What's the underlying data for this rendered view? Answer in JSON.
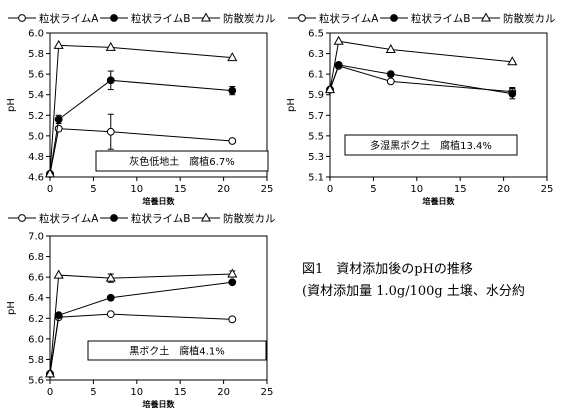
{
  "caption": {
    "line1": "図1　資材添加後のpHの推移",
    "line2": "(資材添加量 1.0g/100g 土壌、水分約"
  },
  "chart_data": [
    {
      "type": "line",
      "soil_label": "灰色低地土　腐植6.7%",
      "xlabel": "培養日数",
      "ylabel": "pH",
      "xlim": [
        0,
        25
      ],
      "ylim": [
        4.6,
        6.0
      ],
      "xticks": [
        "0",
        "5",
        "10",
        "15",
        "20",
        "25"
      ],
      "yticks": [
        "4.6",
        "4.8",
        "5.0",
        "5.2",
        "5.4",
        "5.6",
        "5.8",
        "6.0"
      ],
      "legend_position": "top",
      "series": [
        {
          "name": "粒状ライムA",
          "marker": "circle-open",
          "x": [
            0,
            1,
            7,
            21
          ],
          "y": [
            4.63,
            5.07,
            5.04,
            4.95
          ],
          "err": [
            0,
            0.02,
            0.17,
            0.02
          ]
        },
        {
          "name": "粒状ライムB",
          "marker": "circle-filled",
          "x": [
            0,
            1,
            7,
            21
          ],
          "y": [
            4.63,
            5.16,
            5.54,
            5.44
          ],
          "err": [
            0,
            0.04,
            0.09,
            0.04
          ]
        },
        {
          "name": "防散炭カル",
          "marker": "triangle-open",
          "x": [
            0,
            1,
            7,
            21
          ],
          "y": [
            4.63,
            5.88,
            5.86,
            5.76
          ],
          "err": [
            0,
            0,
            0,
            0
          ]
        }
      ]
    },
    {
      "type": "line",
      "soil_label": "多湿黒ボク土　腐植13.4%",
      "xlabel": "培養日数",
      "ylabel": "pH",
      "xlim": [
        0,
        25
      ],
      "ylim": [
        5.1,
        6.5
      ],
      "xticks": [
        "0",
        "5",
        "10",
        "15",
        "20",
        "25"
      ],
      "yticks": [
        "5.1",
        "5.3",
        "5.5",
        "5.7",
        "5.9",
        "6.1",
        "6.3",
        "6.5"
      ],
      "legend_position": "top",
      "series": [
        {
          "name": "粒状ライムA",
          "marker": "circle-open",
          "x": [
            0,
            1,
            7,
            21
          ],
          "y": [
            5.95,
            6.18,
            6.03,
            5.93
          ],
          "err": [
            0,
            0,
            0,
            0.04
          ]
        },
        {
          "name": "粒状ライムB",
          "marker": "circle-filled",
          "x": [
            0,
            1,
            7,
            21
          ],
          "y": [
            5.95,
            6.19,
            6.1,
            5.91
          ],
          "err": [
            0,
            0,
            0.02,
            0.05
          ]
        },
        {
          "name": "防散炭カル",
          "marker": "triangle-open",
          "x": [
            0,
            1,
            7,
            21
          ],
          "y": [
            5.95,
            6.42,
            6.34,
            6.22
          ],
          "err": [
            0,
            0,
            0,
            0
          ]
        }
      ]
    },
    {
      "type": "line",
      "soil_label": "黒ボク土　腐植4.1%",
      "xlabel": "培養日数",
      "ylabel": "pH",
      "xlim": [
        0,
        25
      ],
      "ylim": [
        5.6,
        7.0
      ],
      "xticks": [
        "0",
        "5",
        "10",
        "15",
        "20",
        "25"
      ],
      "yticks": [
        "5.6",
        "5.8",
        "6.0",
        "6.2",
        "6.4",
        "6.6",
        "6.8",
        "7.0"
      ],
      "legend_position": "top",
      "series": [
        {
          "name": "粒状ライムA",
          "marker": "circle-open",
          "x": [
            0,
            1,
            7,
            21
          ],
          "y": [
            5.66,
            6.21,
            6.24,
            6.19
          ],
          "err": [
            0,
            0,
            0,
            0
          ]
        },
        {
          "name": "粒状ライムB",
          "marker": "circle-filled",
          "x": [
            0,
            1,
            7,
            21
          ],
          "y": [
            5.66,
            6.23,
            6.4,
            6.55
          ],
          "err": [
            0,
            0,
            0.02,
            0
          ]
        },
        {
          "name": "防散炭カル",
          "marker": "triangle-open",
          "x": [
            0,
            1,
            7,
            21
          ],
          "y": [
            5.66,
            6.62,
            6.59,
            6.63
          ],
          "err": [
            0,
            0,
            0.04,
            0.03
          ]
        }
      ]
    }
  ]
}
